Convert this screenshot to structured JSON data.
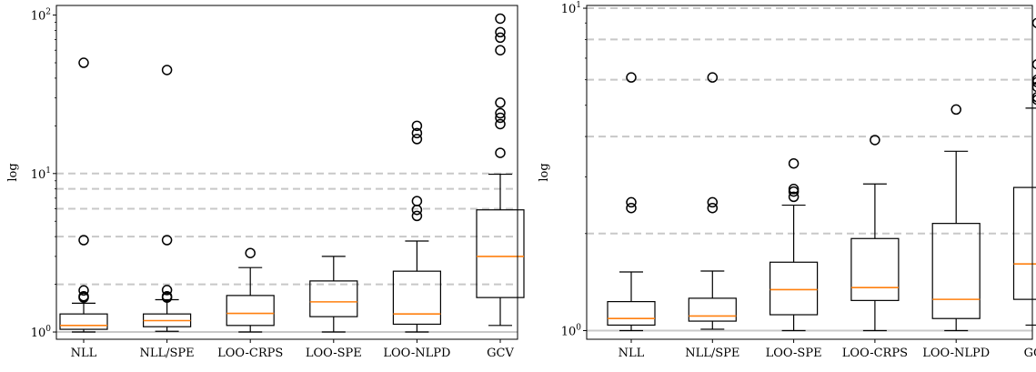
{
  "chart_data": [
    {
      "type": "box",
      "ylabel": "log",
      "yscale": "log",
      "ylim": [
        0.9,
        115
      ],
      "yticks": [
        1,
        10,
        100
      ],
      "ytick_labels": [
        "10^0",
        "10^1",
        "10^2"
      ],
      "reference_lines": [
        {
          "y": 1,
          "style": "solid",
          "color": "#c8c8c8"
        },
        {
          "y": 2,
          "style": "dashed",
          "color": "#c8c8c8"
        },
        {
          "y": 4,
          "style": "dashed",
          "color": "#c8c8c8"
        },
        {
          "y": 6,
          "style": "dashed",
          "color": "#c8c8c8"
        },
        {
          "y": 8,
          "style": "dashed",
          "color": "#c8c8c8"
        },
        {
          "y": 10,
          "style": "dashed",
          "color": "#c8c8c8"
        }
      ],
      "median_color": "#ff7f0e",
      "categories": [
        "NLL",
        "NLL/SPE",
        "LOO-CRPS",
        "LOO-SPE",
        "LOO-NLPD",
        "GCV"
      ],
      "boxes": [
        {
          "whisker_low": 1.0,
          "q1": 1.04,
          "median": 1.1,
          "q3": 1.3,
          "whisker_high": 1.52,
          "outliers": [
            1.65,
            1.68,
            1.83,
            3.8,
            50
          ]
        },
        {
          "whisker_low": 1.01,
          "q1": 1.08,
          "median": 1.18,
          "q3": 1.3,
          "whisker_high": 1.6,
          "outliers": [
            1.65,
            1.68,
            1.84,
            3.8,
            45
          ]
        },
        {
          "whisker_low": 1.0,
          "q1": 1.1,
          "median": 1.31,
          "q3": 1.7,
          "whisker_high": 2.55,
          "outliers": [
            3.15
          ]
        },
        {
          "whisker_low": 1.0,
          "q1": 1.25,
          "median": 1.55,
          "q3": 2.1,
          "whisker_high": 3.0,
          "outliers": []
        },
        {
          "whisker_low": 1.0,
          "q1": 1.12,
          "median": 1.3,
          "q3": 2.42,
          "whisker_high": 3.75,
          "outliers": [
            5.4,
            5.9,
            6.7,
            16.5,
            18,
            20
          ]
        },
        {
          "whisker_low": 1.1,
          "q1": 1.65,
          "median": 3.0,
          "q3": 5.9,
          "whisker_high": 9.9,
          "outliers": [
            13.5,
            20.5,
            22.5,
            24,
            28,
            60,
            72,
            78,
            95
          ]
        }
      ]
    },
    {
      "type": "box",
      "ylabel": "log",
      "yscale": "log",
      "ylim": [
        0.94,
        10.2
      ],
      "yticks": [
        1,
        10
      ],
      "ytick_labels": [
        "10^0",
        "10^1"
      ],
      "reference_lines": [
        {
          "y": 1,
          "style": "solid",
          "color": "#c8c8c8"
        },
        {
          "y": 2,
          "style": "dashed",
          "color": "#c8c8c8"
        },
        {
          "y": 4,
          "style": "dashed",
          "color": "#c8c8c8"
        },
        {
          "y": 6,
          "style": "dashed",
          "color": "#c8c8c8"
        },
        {
          "y": 8,
          "style": "dashed",
          "color": "#c8c8c8"
        },
        {
          "y": 10,
          "style": "dashed",
          "color": "#c8c8c8"
        }
      ],
      "median_color": "#ff7f0e",
      "categories": [
        "NLL",
        "NLL/SPE",
        "LOO-SPE",
        "LOO-CRPS",
        "LOO-NLPD",
        "GCV"
      ],
      "boxes": [
        {
          "whisker_low": 1.0,
          "q1": 1.04,
          "median": 1.09,
          "q3": 1.23,
          "whisker_high": 1.52,
          "outliers": [
            2.4,
            2.5,
            6.1
          ]
        },
        {
          "whisker_low": 1.01,
          "q1": 1.07,
          "median": 1.11,
          "q3": 1.26,
          "whisker_high": 1.53,
          "outliers": [
            2.4,
            2.5,
            6.1
          ]
        },
        {
          "whisker_low": 1.0,
          "q1": 1.12,
          "median": 1.34,
          "q3": 1.63,
          "whisker_high": 2.45,
          "outliers": [
            2.6,
            2.7,
            2.75,
            3.3
          ]
        },
        {
          "whisker_low": 1.0,
          "q1": 1.24,
          "median": 1.36,
          "q3": 1.93,
          "whisker_high": 2.85,
          "outliers": [
            3.9
          ]
        },
        {
          "whisker_low": 1.0,
          "q1": 1.09,
          "median": 1.25,
          "q3": 2.15,
          "whisker_high": 3.6,
          "outliers": [
            4.85
          ]
        },
        {
          "whisker_low": 1.04,
          "q1": 1.25,
          "median": 1.61,
          "q3": 2.78,
          "whisker_high": 4.9,
          "outliers": [
            5.2,
            5.3,
            5.7,
            5.9,
            6.0,
            6.7,
            9.0
          ]
        }
      ]
    }
  ]
}
